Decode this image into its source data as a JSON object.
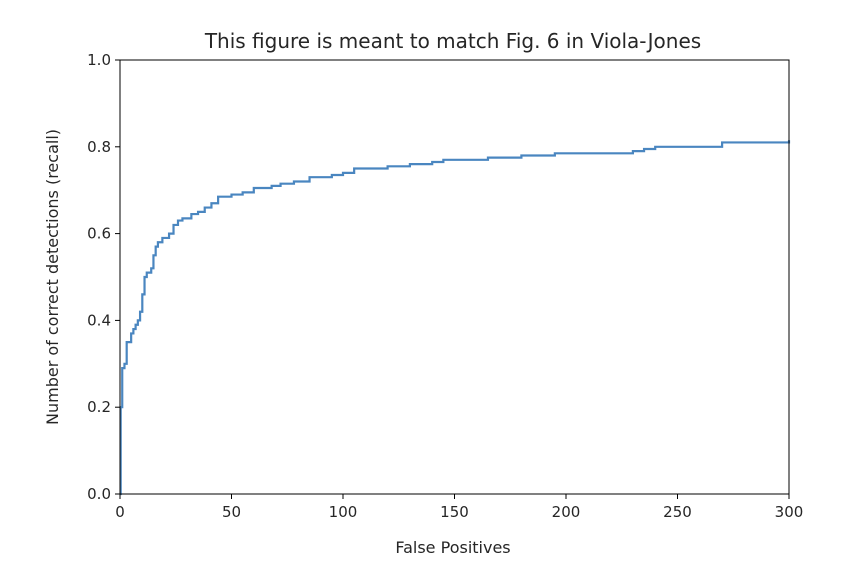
{
  "chart_data": {
    "type": "line",
    "title": "This figure is meant to match Fig. 6 in Viola-Jones",
    "xlabel": "False Positives",
    "ylabel": "Number of correct detections (recall)",
    "xlim": [
      0,
      300
    ],
    "ylim": [
      0.0,
      1.0
    ],
    "xticks": [
      0,
      50,
      100,
      150,
      200,
      250,
      300
    ],
    "xtick_labels": [
      "0",
      "50",
      "100",
      "150",
      "200",
      "250",
      "300"
    ],
    "yticks": [
      0.0,
      0.2,
      0.4,
      0.6,
      0.8,
      1.0
    ],
    "ytick_labels": [
      "0.0",
      "0.2",
      "0.4",
      "0.6",
      "0.8",
      "1.0"
    ],
    "grid": false,
    "series": [
      {
        "name": "recall",
        "color": "#4a86c0",
        "drawstyle": "steps-post",
        "x": [
          0,
          0.3,
          1,
          2,
          3,
          5,
          6,
          7,
          8,
          9,
          10,
          11,
          12,
          14,
          15,
          16,
          17,
          19,
          22,
          24,
          26,
          28,
          32,
          35,
          38,
          41,
          44,
          50,
          55,
          60,
          68,
          72,
          78,
          85,
          95,
          100,
          105,
          120,
          130,
          140,
          145,
          165,
          180,
          195,
          230,
          235,
          240,
          265,
          270,
          280,
          300
        ],
        "y": [
          0.0,
          0.2,
          0.29,
          0.3,
          0.35,
          0.37,
          0.38,
          0.39,
          0.4,
          0.42,
          0.46,
          0.5,
          0.51,
          0.52,
          0.55,
          0.57,
          0.58,
          0.59,
          0.6,
          0.62,
          0.63,
          0.635,
          0.645,
          0.65,
          0.66,
          0.67,
          0.685,
          0.69,
          0.695,
          0.705,
          0.71,
          0.715,
          0.72,
          0.73,
          0.735,
          0.74,
          0.75,
          0.755,
          0.76,
          0.765,
          0.77,
          0.775,
          0.78,
          0.785,
          0.79,
          0.795,
          0.8,
          0.8,
          0.81,
          0.81,
          0.815
        ]
      }
    ]
  }
}
